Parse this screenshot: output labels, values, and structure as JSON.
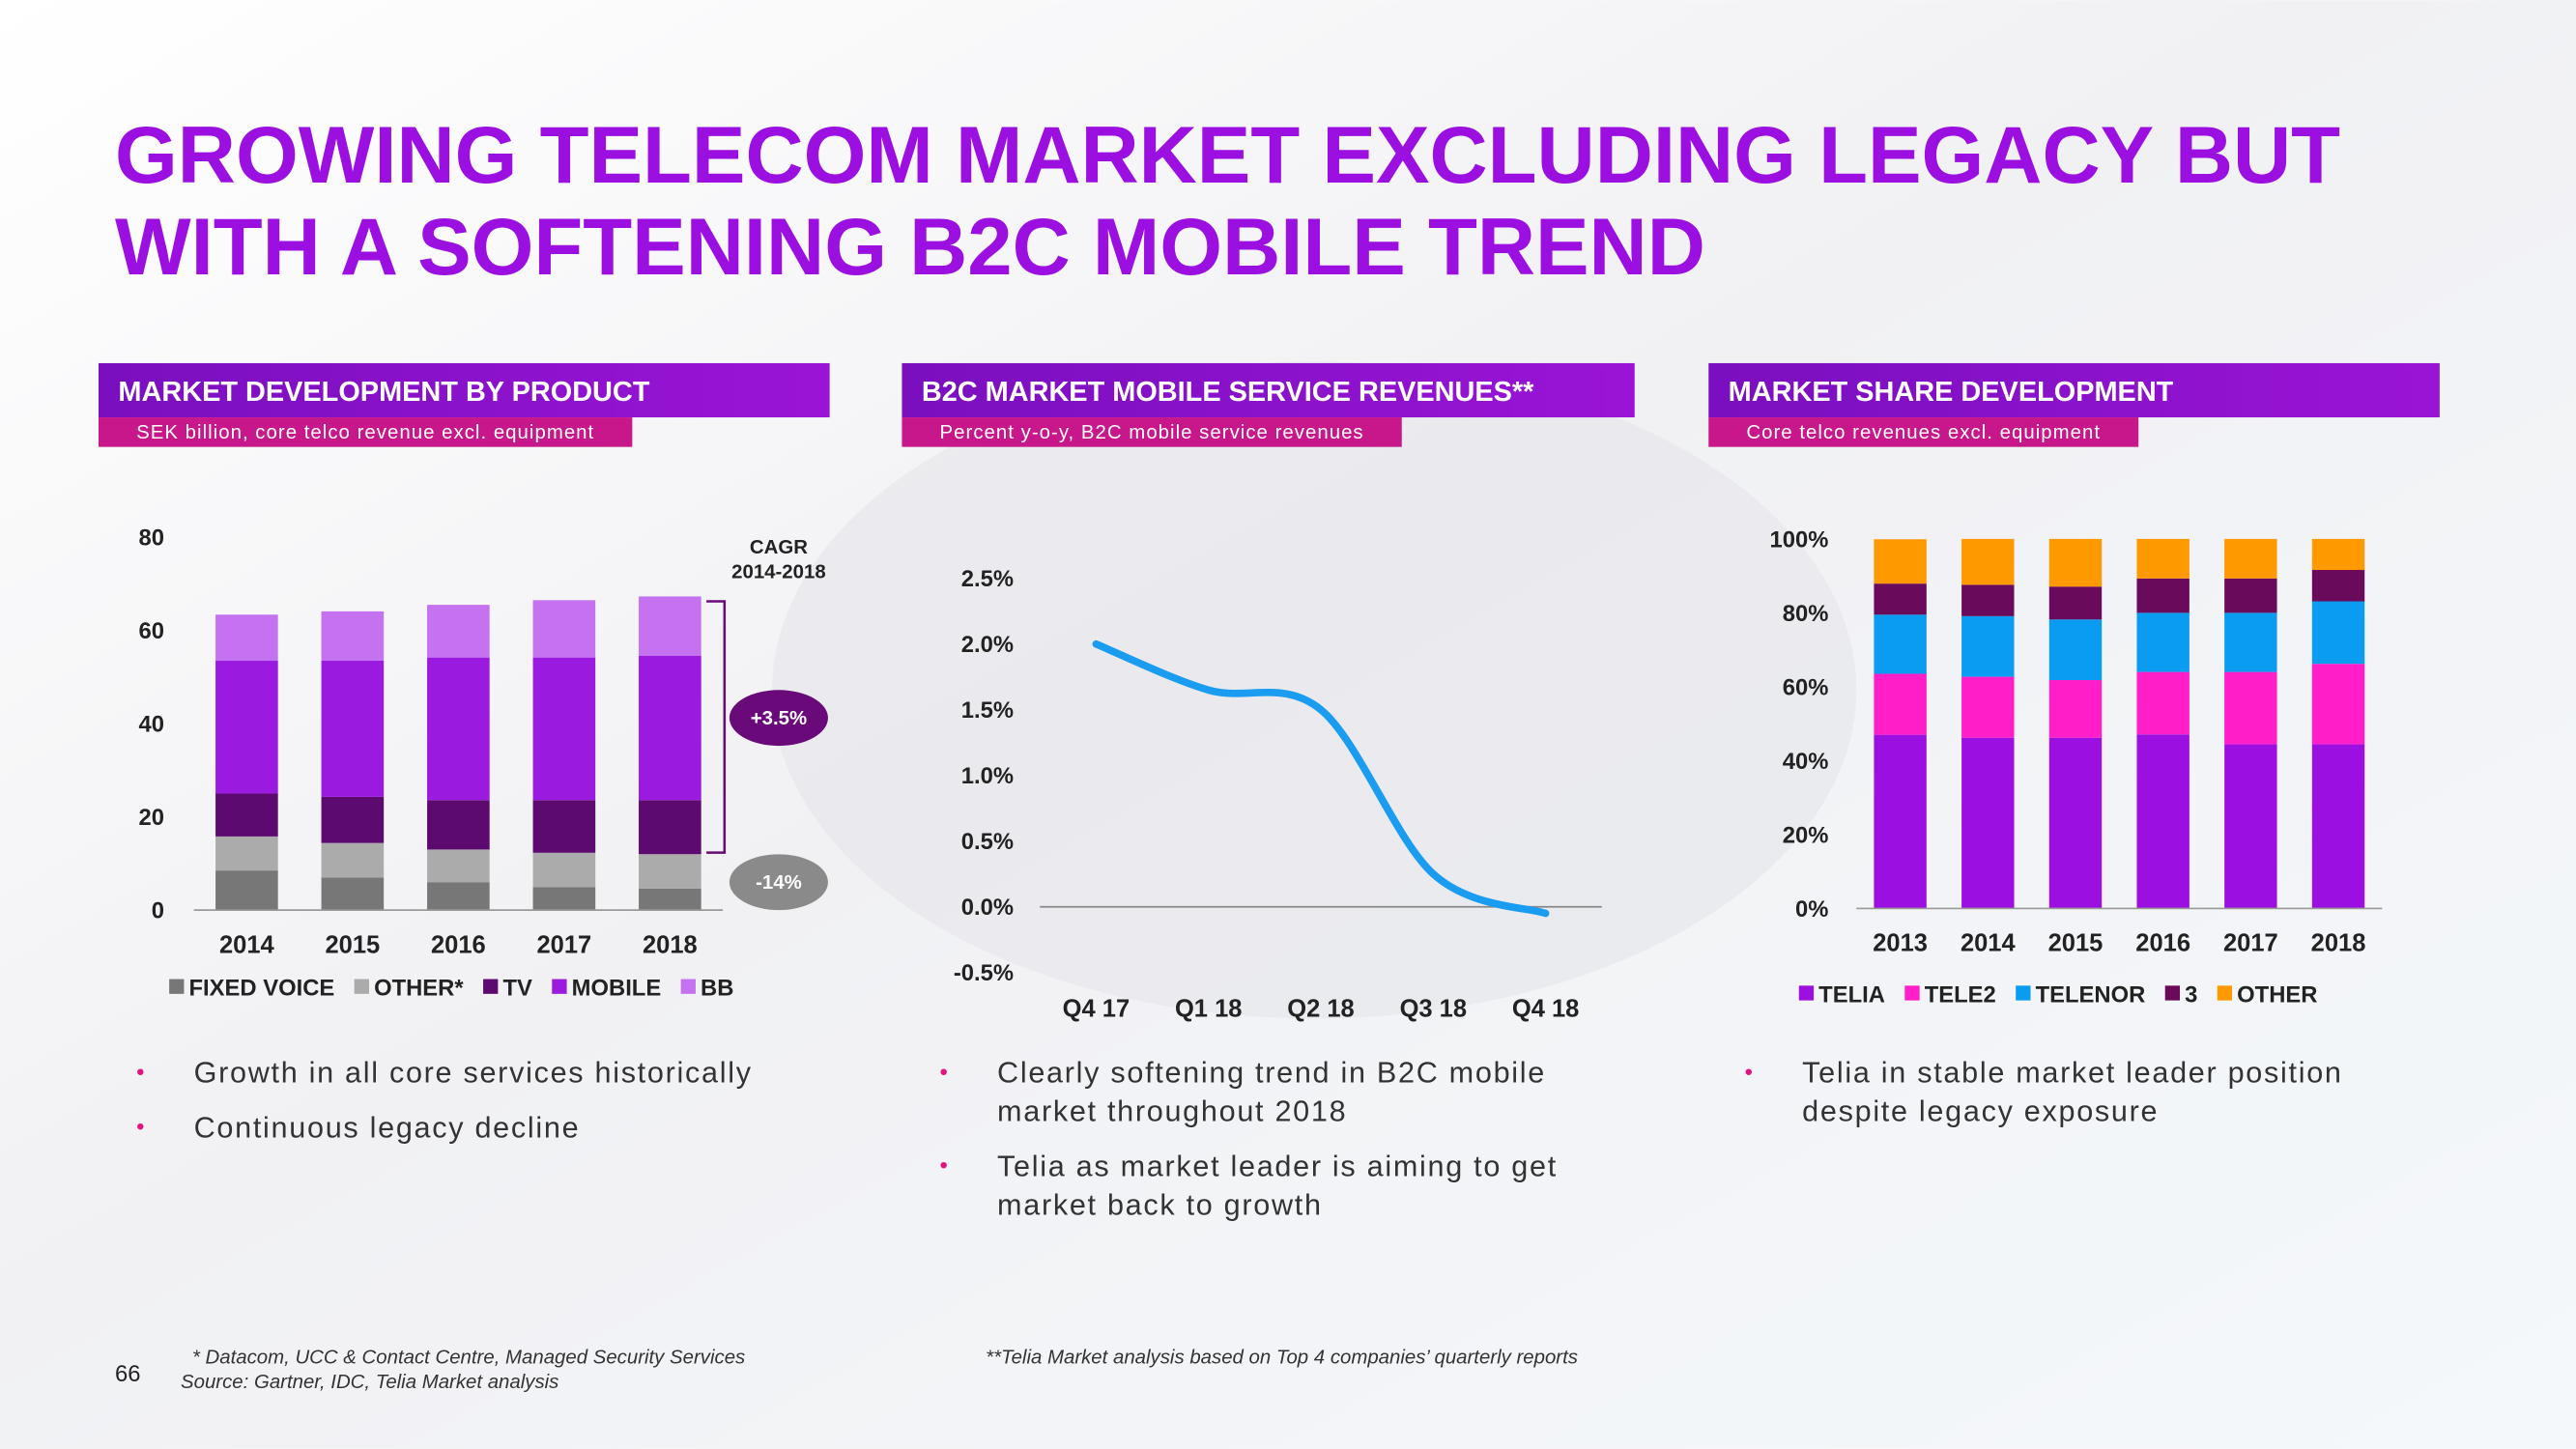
{
  "title": [
    "GROWING TELECOM MARKET EXCLUDING LEGACY BUT",
    "WITH A SOFTENING B2C MOBILE TREND"
  ],
  "chart_data": [
    {
      "type": "stacked_bar",
      "title": "MARKET DEVELOPMENT BY PRODUCT",
      "subtitle": "SEK billion, core telco revenue excl. equipment",
      "categories": [
        "2014",
        "2015",
        "2016",
        "2017",
        "2018"
      ],
      "series": [
        {
          "name": "FIXED VOICE",
          "color": "#777777",
          "values": [
            8.5,
            7.0,
            6.0,
            4.9,
            4.6
          ]
        },
        {
          "name": "OTHER*",
          "color": "#ababab",
          "values": [
            7.3,
            7.4,
            7.0,
            7.4,
            7.4
          ]
        },
        {
          "name": "TV",
          "color": "#5c0a70",
          "values": [
            9.2,
            9.9,
            10.6,
            11.3,
            11.6
          ]
        },
        {
          "name": "MOBILE",
          "color": "#9a1ae0",
          "values": [
            28.5,
            29.2,
            30.6,
            30.6,
            31.0
          ]
        },
        {
          "name": "BB",
          "color": "#c472f0",
          "values": [
            9.9,
            10.6,
            11.3,
            12.3,
            12.7
          ]
        }
      ],
      "ylim": [
        0,
        80
      ],
      "yticks": [
        0,
        20,
        40,
        60,
        80
      ],
      "annotations": [
        "CAGR",
        "2014-2018",
        "+3.5%",
        "-14%"
      ]
    },
    {
      "type": "line",
      "title": "B2C MARKET MOBILE SERVICE REVENUES**",
      "subtitle": "Percent y-o-y, B2C mobile service revenues",
      "categories": [
        "Q4 17",
        "Q1 18",
        "Q2 18",
        "Q3 18",
        "Q4 18"
      ],
      "series": [
        {
          "color": "#1a9cf0",
          "values": [
            2.0,
            1.65,
            1.5,
            0.25,
            -0.05
          ]
        }
      ],
      "ylim": [
        -0.5,
        2.5
      ],
      "yticks": [
        {
          "value": -0.5,
          "label": "-0.5%"
        },
        {
          "value": 0,
          "label": "0.0%"
        },
        {
          "value": 0.5,
          "label": "0.5%"
        },
        {
          "value": 1,
          "label": "1.0%"
        },
        {
          "value": 1.5,
          "label": "1.5%"
        },
        {
          "value": 2,
          "label": "2.0%"
        },
        {
          "value": 2.5,
          "label": "2.5%"
        }
      ]
    },
    {
      "type": "stacked_bar",
      "title": "MARKET SHARE DEVELOPMENT",
      "subtitle": "Core telco revenues excl. equipment",
      "categories": [
        "2013",
        "2014",
        "2015",
        "2016",
        "2017",
        "2018"
      ],
      "series": [
        {
          "name": "TELIA",
          "color": "#9b10e0",
          "values": [
            47.0,
            46.2,
            46.2,
            47.1,
            44.4,
            44.4
          ]
        },
        {
          "name": "TELE2",
          "color": "#ff1ec8",
          "values": [
            16.5,
            16.5,
            15.6,
            16.9,
            19.6,
            21.8
          ]
        },
        {
          "name": "TELENOR",
          "color": "#0a9cf0",
          "values": [
            16.0,
            16.4,
            16.4,
            16.0,
            16.0,
            16.9
          ]
        },
        {
          "name": "3",
          "color": "#6a0a5a",
          "values": [
            8.4,
            8.5,
            8.9,
            9.3,
            9.3,
            8.5
          ]
        },
        {
          "name": "OTHER",
          "color": "#ff9900",
          "values": [
            12.0,
            12.4,
            12.9,
            10.7,
            10.7,
            8.4
          ]
        }
      ],
      "ylim": [
        0,
        100
      ],
      "yticks": [
        {
          "value": 0,
          "label": "0%"
        },
        {
          "value": 20,
          "label": "20%"
        },
        {
          "value": 40,
          "label": "40%"
        },
        {
          "value": 60,
          "label": "60%"
        },
        {
          "value": 80,
          "label": "80%"
        },
        {
          "value": 100,
          "label": "100%"
        }
      ]
    }
  ],
  "bullets": [
    [
      [
        "Growth in all core services historically"
      ],
      [
        "Continuous legacy decline"
      ]
    ],
    [
      [
        "Clearly softening trend in B2C mobile",
        "market throughout 2018"
      ],
      [
        "Telia as market leader is aiming to get",
        "market back to growth"
      ]
    ],
    [
      [
        "Telia in stable market leader position",
        "despite legacy exposure"
      ]
    ]
  ],
  "page_number": "66",
  "footnotes": [
    "* Datacom, UCC & Contact Centre, Managed Security Services",
    "Source: Gartner, IDC, Telia Market analysis",
    "**Telia Market analysis based on Top 4 companies’ quarterly reports"
  ]
}
